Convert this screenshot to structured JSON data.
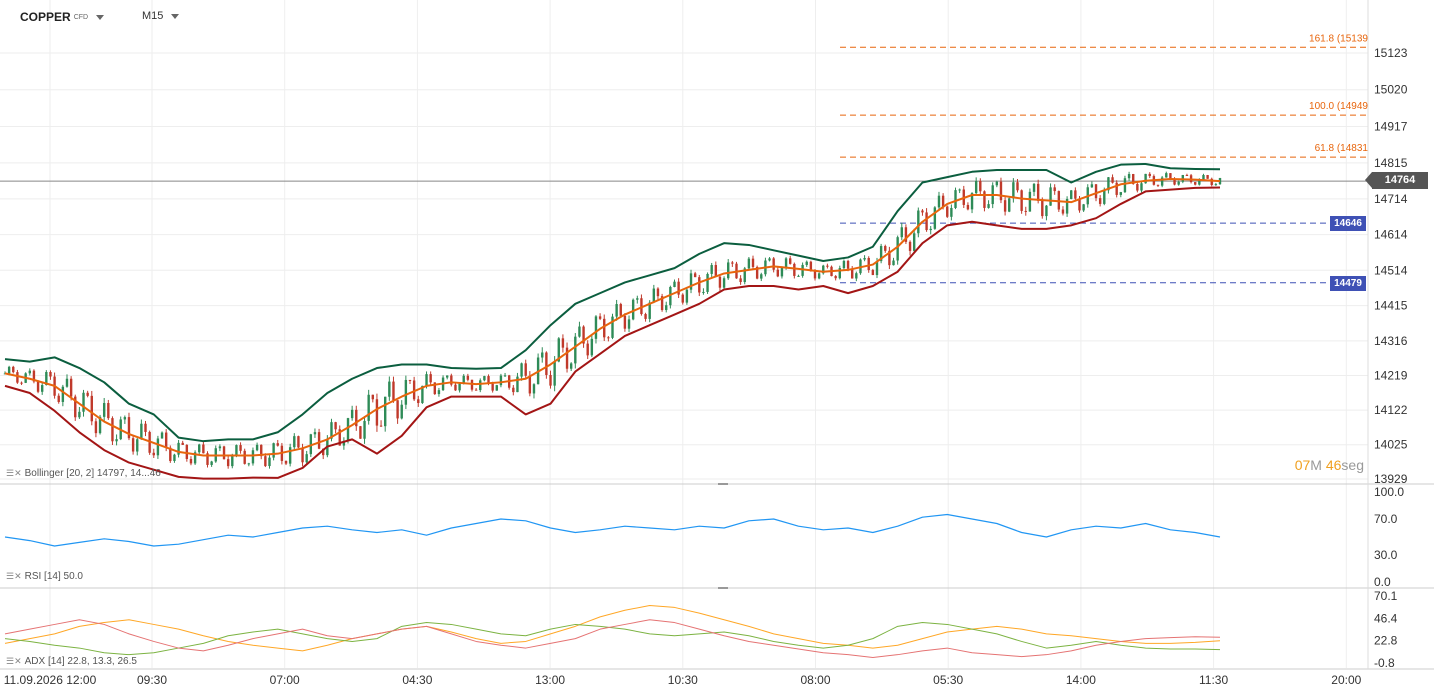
{
  "header": {
    "symbol": "COPPER",
    "symbol_type": "CFD",
    "timeframe": "M15"
  },
  "price_axis": {
    "ticks": [
      "15123",
      "15020",
      "14917",
      "14815",
      "14714",
      "14614",
      "14514",
      "14415",
      "14316",
      "14219",
      "14122",
      "14025",
      "13929"
    ]
  },
  "current_price": "14764",
  "level_tags": [
    "14646",
    "14479"
  ],
  "fib_levels": [
    {
      "label": "161.8 (15139"
    },
    {
      "label": "100.0 (14949"
    },
    {
      "label": "61.8 (14831"
    }
  ],
  "countdown": {
    "minutes": "07",
    "min_unit": "M",
    "seconds": "46",
    "sec_unit": "seg"
  },
  "indicators": {
    "bollinger": "Bollinger [20, 2] 14797, 14...46",
    "rsi": "RSI [14] 50.0",
    "adx": "ADX [14] 22.8, 13.3, 26.5"
  },
  "rsi_axis": [
    "100.0",
    "70.0",
    "30.0",
    "0.0"
  ],
  "adx_axis": [
    "70.1",
    "46.4",
    "22.8",
    "-0.8"
  ],
  "time_axis": [
    "11.09.2026 12:00",
    "09:30",
    "07:00",
    "04:30",
    "13:00",
    "10:30",
    "08:00",
    "05:30",
    "14:00",
    "11:30",
    "20:00"
  ],
  "colors": {
    "upper_band": "#0b5e3f",
    "middle_band": "#e8650c",
    "lower_band": "#a31515",
    "candle_up": "#2e8b57",
    "candle_down": "#c0392b",
    "rsi": "#2196f3",
    "adx": "#e57373",
    "di_plus": "#7cb342",
    "di_minus": "#ffa726",
    "fib": "#e8650c",
    "level": "#3f51b5"
  },
  "chart_data": {
    "type": "line",
    "title": "COPPER",
    "timeframe": "M15",
    "ylim": [
      13929,
      15123
    ],
    "x_ticks": [
      "11.09.2026 12:00",
      "09:30",
      "07:00",
      "04:30",
      "13:00",
      "10:30",
      "08:00",
      "05:30",
      "14:00",
      "11:30",
      "20:00"
    ],
    "series": [
      {
        "name": "Upper",
        "values": [
          14265,
          14258,
          14270,
          14240,
          14200,
          14140,
          14110,
          14045,
          14035,
          14040,
          14040,
          14060,
          14110,
          14170,
          14210,
          14240,
          14250,
          14250,
          14240,
          14238,
          14240,
          14290,
          14360,
          14420,
          14450,
          14480,
          14500,
          14520,
          14560,
          14590,
          14585,
          14570,
          14555,
          14540,
          14550,
          14580,
          14680,
          14760,
          14775,
          14790,
          14795,
          14795,
          14795,
          14760,
          14790,
          14810,
          14812,
          14800,
          14798,
          14797
        ]
      },
      {
        "name": "Middle",
        "values": [
          14225,
          14210,
          14190,
          14140,
          14090,
          14055,
          14030,
          14005,
          13995,
          13995,
          13995,
          14000,
          14015,
          14040,
          14080,
          14125,
          14160,
          14190,
          14200,
          14195,
          14200,
          14210,
          14250,
          14300,
          14350,
          14390,
          14420,
          14450,
          14480,
          14505,
          14515,
          14525,
          14518,
          14510,
          14515,
          14530,
          14580,
          14650,
          14700,
          14725,
          14725,
          14715,
          14710,
          14705,
          14730,
          14755,
          14765,
          14770,
          14768,
          14764
        ]
      },
      {
        "name": "Lower",
        "values": [
          14190,
          14170,
          14120,
          14060,
          14010,
          13975,
          13955,
          13935,
          13930,
          13930,
          13933,
          13932,
          13960,
          14020,
          14040,
          14000,
          14050,
          14130,
          14160,
          14160,
          14160,
          14110,
          14140,
          14230,
          14280,
          14330,
          14360,
          14390,
          14420,
          14460,
          14470,
          14470,
          14460,
          14470,
          14450,
          14470,
          14510,
          14590,
          14640,
          14650,
          14640,
          14630,
          14630,
          14640,
          14660,
          14700,
          14735,
          14740,
          14745,
          14746
        ]
      },
      {
        "name": "RSI",
        "values": [
          50,
          46,
          40,
          44,
          48,
          45,
          40,
          42,
          47,
          52,
          50,
          55,
          60,
          62,
          58,
          55,
          58,
          52,
          60,
          65,
          70,
          68,
          60,
          55,
          58,
          62,
          60,
          58,
          62,
          60,
          68,
          70,
          62,
          58,
          60,
          55,
          62,
          72,
          75,
          70,
          65,
          55,
          50,
          58,
          62,
          60,
          65,
          58,
          55,
          50
        ]
      },
      {
        "name": "ADX",
        "values": [
          30,
          35,
          40,
          45,
          40,
          30,
          22,
          15,
          12,
          18,
          25,
          30,
          35,
          28,
          25,
          30,
          35,
          38,
          30,
          22,
          18,
          15,
          20,
          25,
          35,
          40,
          45,
          42,
          35,
          28,
          22,
          18,
          14,
          10,
          8,
          5,
          8,
          12,
          15,
          10,
          8,
          6,
          8,
          12,
          18,
          22,
          25,
          26,
          27,
          26.5
        ]
      },
      {
        "name": "DI+",
        "values": [
          25,
          22,
          18,
          15,
          10,
          8,
          10,
          15,
          20,
          28,
          32,
          35,
          30,
          25,
          22,
          25,
          38,
          42,
          40,
          35,
          30,
          28,
          35,
          40,
          38,
          35,
          30,
          28,
          30,
          32,
          28,
          22,
          18,
          15,
          18,
          25,
          38,
          42,
          40,
          35,
          30,
          22,
          15,
          18,
          22,
          18,
          15,
          14,
          14,
          13.3
        ]
      },
      {
        "name": "DI-",
        "values": [
          20,
          25,
          30,
          38,
          42,
          45,
          40,
          35,
          28,
          22,
          18,
          15,
          12,
          18,
          25,
          30,
          35,
          38,
          32,
          25,
          20,
          22,
          30,
          38,
          48,
          55,
          60,
          58,
          52,
          45,
          38,
          30,
          25,
          20,
          18,
          15,
          18,
          25,
          32,
          35,
          38,
          35,
          30,
          28,
          25,
          22,
          20,
          20,
          21,
          22.8
        ]
      }
    ]
  }
}
